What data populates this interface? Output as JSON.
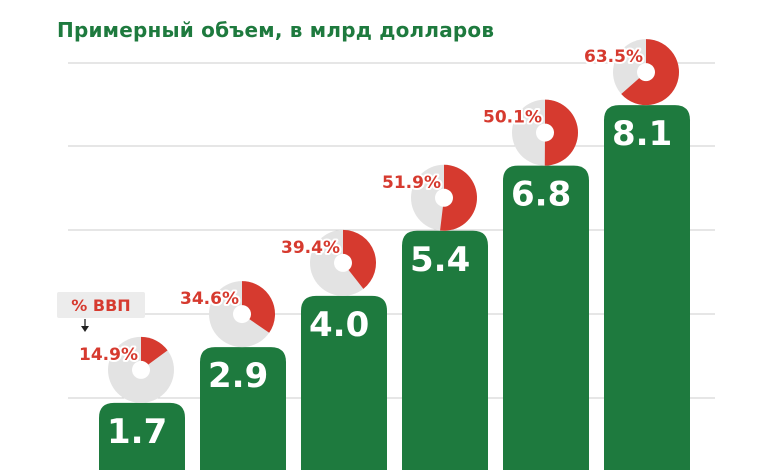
{
  "chart_data": {
    "type": "bar",
    "title": "Примерный объем, в млрд долларов",
    "values": [
      1.7,
      2.9,
      4.0,
      5.4,
      6.8,
      8.1
    ],
    "value_labels": [
      "1.7",
      "2.9",
      "4.0",
      "5.4",
      "6.8",
      "8.1"
    ],
    "gdp_share_percent": [
      14.9,
      34.6,
      39.4,
      51.9,
      50.1,
      63.5
    ],
    "gdp_share_labels": [
      "14.9%",
      "34.6%",
      "39.4%",
      "51.9%",
      "50.1%",
      "63.5%"
    ],
    "gdp_legend": "% ВВП",
    "ylim": [
      0,
      9.5
    ],
    "grid": true,
    "colors": {
      "bar": "#1e7a3e",
      "pie_fill": "#d63a2f",
      "pie_track": "#e3e3e3",
      "percent_text": "#d63a2f",
      "gridline": "#cccccc"
    }
  }
}
